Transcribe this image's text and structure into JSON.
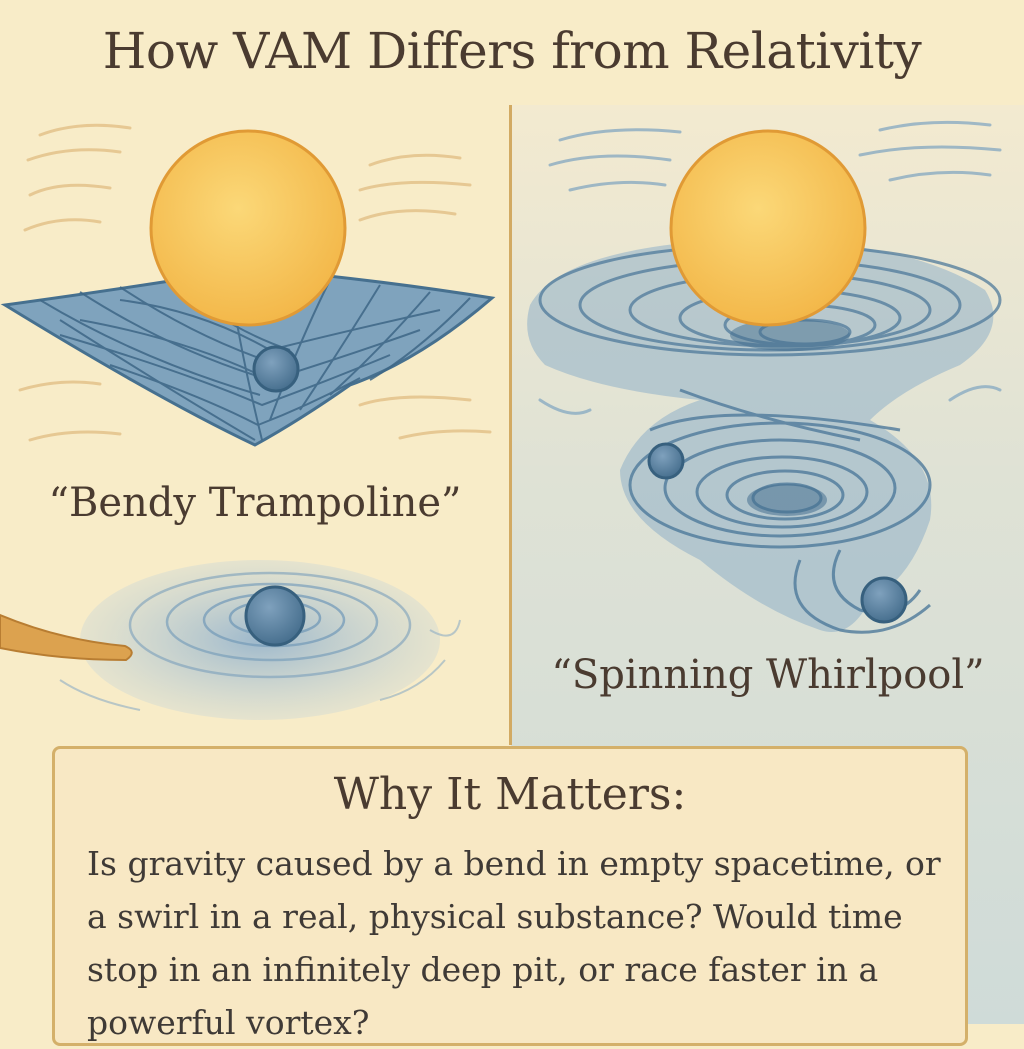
{
  "title": "How VAM Differs from Relativity",
  "left_panel": {
    "caption": "“Bendy Trampoline”"
  },
  "right_panel": {
    "caption": "“Spinning Whirlpool”"
  },
  "why_it_matters": {
    "heading": "Why It Matters:",
    "body": "Is gravity caused by a bend in empty spacetime, or a swirl in a real, physical substance? Would time stop in an infinitely deep pit, or race faster in a powerful vortex?"
  },
  "colors": {
    "background": "#f8ecc8",
    "sun": "#f6c55c",
    "sun_outline": "#e09a35",
    "fabric": "#5f8aa8",
    "water": "#6c95b6",
    "divider": "#d2aa63",
    "text": "#4a3b30"
  }
}
